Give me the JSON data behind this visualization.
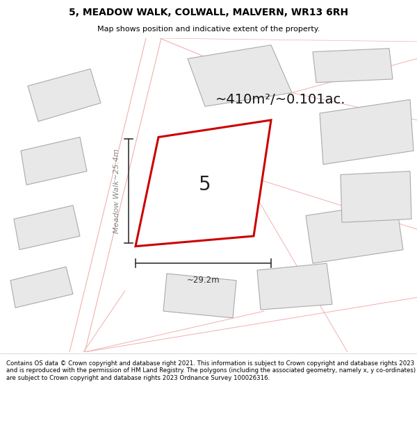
{
  "title_line1": "5, MEADOW WALK, COLWALL, MALVERN, WR13 6RH",
  "title_line2": "Map shows position and indicative extent of the property.",
  "area_text": "~410m²/~0.101ac.",
  "plot_number": "5",
  "dim_width": "~29.2m",
  "dim_height": "~25.4m",
  "street_label": "Meadow Walk~25.4m",
  "footer_text": "Contains OS data © Crown copyright and database right 2021. This information is subject to Crown copyright and database rights 2023 and is reproduced with the permission of HM Land Registry. The polygons (including the associated geometry, namely x, y co-ordinates) are subject to Crown copyright and database rights 2023 Ordnance Survey 100026316.",
  "map_bg": "#ffffff",
  "plot_fill": "#ffffff",
  "plot_edge": "#cc0000",
  "plot_lw": 2.2,
  "building_fill": "#e8e8e8",
  "building_edge": "#aaaaaa",
  "building_lw": 0.8,
  "road_color": "#f0b0b0",
  "road_lw": 0.9,
  "dim_color": "#333333",
  "area_fontsize": 14,
  "plot_num_fontsize": 20,
  "street_fontsize": 8,
  "title_fontsize": 10,
  "subtitle_fontsize": 8,
  "footer_fontsize": 6.2
}
